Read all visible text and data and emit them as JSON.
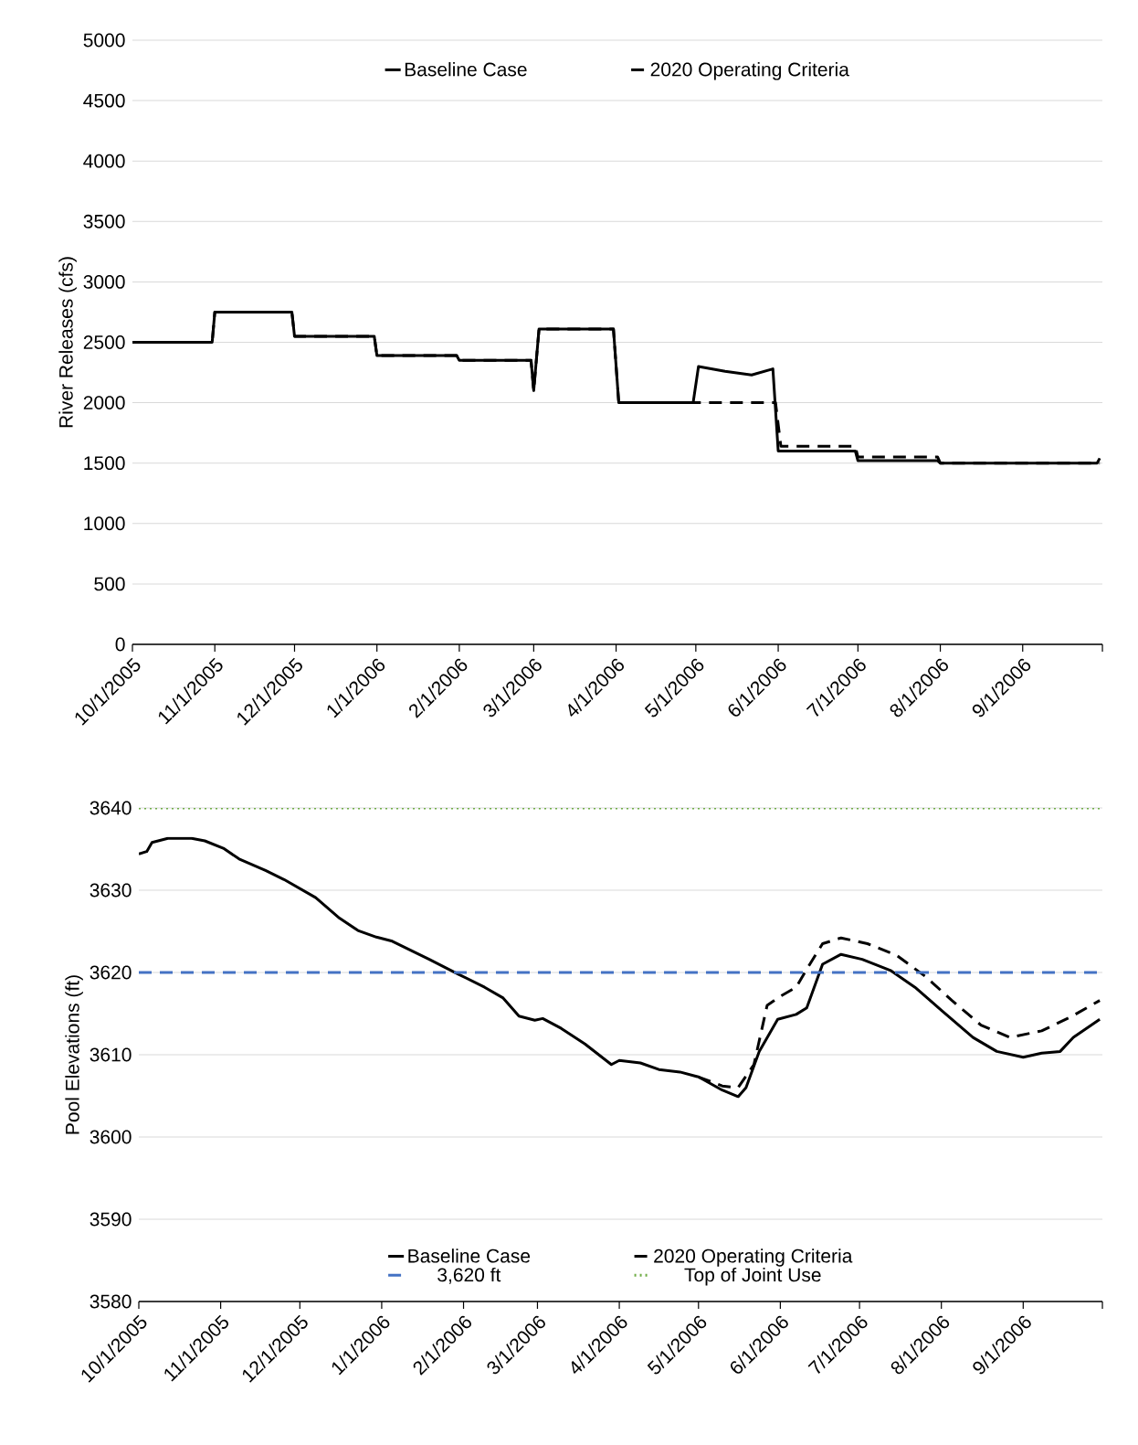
{
  "chart_data": [
    {
      "type": "line",
      "ylabel": "River Releases (cfs)",
      "xlim": [
        "2005-10-01",
        "2006-10-01"
      ],
      "ylim": [
        0,
        5000
      ],
      "yticks": [
        0,
        500,
        1000,
        1500,
        2000,
        2500,
        3000,
        3500,
        4000,
        4500,
        5000
      ],
      "xticks": [
        {
          "value": "2005-10-01",
          "label": "10/1/2005"
        },
        {
          "value": "2005-11-01",
          "label": "11/1/2005"
        },
        {
          "value": "2005-12-01",
          "label": "12/1/2005"
        },
        {
          "value": "2006-01-01",
          "label": "1/1/2006"
        },
        {
          "value": "2006-02-01",
          "label": "2/1/2006"
        },
        {
          "value": "2006-03-01",
          "label": "3/1/2006"
        },
        {
          "value": "2006-04-01",
          "label": "4/1/2006"
        },
        {
          "value": "2006-05-01",
          "label": "5/1/2006"
        },
        {
          "value": "2006-06-01",
          "label": "6/1/2006"
        },
        {
          "value": "2006-07-01",
          "label": "7/1/2006"
        },
        {
          "value": "2006-08-01",
          "label": "8/1/2006"
        },
        {
          "value": "2006-09-01",
          "label": "9/1/2006"
        },
        {
          "value": "2006-10-01",
          "label": null
        }
      ],
      "grid": "y",
      "legend": "top",
      "marker": "none",
      "series": [
        {
          "name": "Baseline Case",
          "color": "#000000",
          "line_style": "solid",
          "x": [
            "2005-10-01",
            "2005-10-31",
            "2005-11-01",
            "2005-11-30",
            "2005-12-01",
            "2005-12-31",
            "2006-01-01",
            "2006-01-31",
            "2006-02-01",
            "2006-02-28",
            "2006-03-01",
            "2006-03-03",
            "2006-03-31",
            "2006-04-02",
            "2006-04-30",
            "2006-05-02",
            "2006-05-12",
            "2006-05-22",
            "2006-05-30",
            "2006-06-01",
            "2006-06-30",
            "2006-07-01",
            "2006-07-31",
            "2006-08-01",
            "2006-09-29",
            "2006-09-30"
          ],
          "values": [
            2500,
            2500,
            2750,
            2750,
            2550,
            2550,
            2390,
            2390,
            2350,
            2350,
            2100,
            2610,
            2610,
            2000,
            2000,
            2300,
            2260,
            2230,
            2280,
            1600,
            1600,
            1520,
            1520,
            1500,
            1500,
            1540
          ]
        },
        {
          "name": "2020 Operating Criteria",
          "color": "#000000",
          "line_style": "dashed",
          "x": [
            "2005-10-01",
            "2005-10-31",
            "2005-11-01",
            "2005-11-30",
            "2005-12-01",
            "2005-12-31",
            "2006-01-01",
            "2006-01-31",
            "2006-02-01",
            "2006-02-28",
            "2006-03-01",
            "2006-03-03",
            "2006-03-31",
            "2006-04-02",
            "2006-05-31",
            "2006-06-02",
            "2006-06-30",
            "2006-07-01",
            "2006-07-31",
            "2006-08-01",
            "2006-09-30"
          ],
          "values": [
            2500,
            2500,
            2750,
            2750,
            2550,
            2550,
            2390,
            2390,
            2350,
            2350,
            2100,
            2610,
            2610,
            2000,
            2000,
            1640,
            1640,
            1550,
            1550,
            1500,
            1500
          ]
        }
      ]
    },
    {
      "type": "line",
      "ylabel": "Pool Elevations (ft)",
      "xlim": [
        "2005-10-01",
        "2006-10-01"
      ],
      "ylim": [
        3580,
        3640
      ],
      "yticks": [
        3580,
        3590,
        3600,
        3610,
        3620,
        3630,
        3640
      ],
      "xticks": [
        {
          "value": "2005-10-01",
          "label": "10/1/2005"
        },
        {
          "value": "2005-11-01",
          "label": "11/1/2005"
        },
        {
          "value": "2005-12-01",
          "label": "12/1/2005"
        },
        {
          "value": "2006-01-01",
          "label": "1/1/2006"
        },
        {
          "value": "2006-02-01",
          "label": "2/1/2006"
        },
        {
          "value": "2006-03-01",
          "label": "3/1/2006"
        },
        {
          "value": "2006-04-01",
          "label": "4/1/2006"
        },
        {
          "value": "2006-05-01",
          "label": "5/1/2006"
        },
        {
          "value": "2006-06-01",
          "label": "6/1/2006"
        },
        {
          "value": "2006-07-01",
          "label": "7/1/2006"
        },
        {
          "value": "2006-08-01",
          "label": "8/1/2006"
        },
        {
          "value": "2006-09-01",
          "label": "9/1/2006"
        },
        {
          "value": "2006-10-01",
          "label": null
        }
      ],
      "grid": "y",
      "legend": "bottom",
      "marker": "none",
      "series": [
        {
          "name": "Baseline Case",
          "color": "#000000",
          "line_style": "solid",
          "x": [
            "2005-10-01",
            "2005-10-04",
            "2005-10-06",
            "2005-10-12",
            "2005-10-21",
            "2005-10-26",
            "2005-11-02",
            "2005-11-08",
            "2005-11-18",
            "2005-11-25",
            "2005-12-07",
            "2005-12-16",
            "2005-12-23",
            "2005-12-30",
            "2006-01-05",
            "2006-01-19",
            "2006-01-30",
            "2006-02-09",
            "2006-02-16",
            "2006-02-22",
            "2006-02-28",
            "2006-03-03",
            "2006-03-10",
            "2006-03-19",
            "2006-03-29",
            "2006-04-01",
            "2006-04-09",
            "2006-04-16",
            "2006-04-24",
            "2006-05-01",
            "2006-05-10",
            "2006-05-16",
            "2006-05-19",
            "2006-05-24",
            "2006-05-31",
            "2006-06-07",
            "2006-06-11",
            "2006-06-17",
            "2006-06-24",
            "2006-07-02",
            "2006-07-13",
            "2006-07-22",
            "2006-08-01",
            "2006-08-13",
            "2006-08-22",
            "2006-09-01",
            "2006-09-08",
            "2006-09-15",
            "2006-09-20",
            "2006-09-30"
          ],
          "values": [
            3634.4,
            3634.7,
            3635.8,
            3636.3,
            3636.3,
            3636,
            3635.1,
            3633.8,
            3632.4,
            3631.3,
            3629.1,
            3626.6,
            3625.1,
            3624.3,
            3623.8,
            3621.6,
            3619.8,
            3618.2,
            3616.9,
            3614.7,
            3614.2,
            3614.4,
            3613.2,
            3611.3,
            3608.8,
            3609.3,
            3609,
            3608.2,
            3607.9,
            3607.3,
            3605.7,
            3604.9,
            3606,
            3610.4,
            3614.3,
            3614.9,
            3615.7,
            3621,
            3622.2,
            3621.6,
            3620.2,
            3618.2,
            3615.4,
            3612.1,
            3610.4,
            3609.7,
            3610.2,
            3610.4,
            3612.1,
            3614.3
          ]
        },
        {
          "name": "2020 Operating Criteria",
          "color": "#000000",
          "line_style": "dashed",
          "x": [
            "2006-05-01",
            "2006-05-10",
            "2006-05-16",
            "2006-05-22",
            "2006-05-27",
            "2006-06-01",
            "2006-06-07",
            "2006-06-11",
            "2006-06-17",
            "2006-06-24",
            "2006-07-04",
            "2006-07-15",
            "2006-07-26",
            "2006-08-05",
            "2006-08-16",
            "2006-08-27",
            "2006-09-08",
            "2006-09-19",
            "2006-09-30"
          ],
          "values": [
            3607.3,
            3606.2,
            3606,
            3608.8,
            3616,
            3617.1,
            3618.2,
            3620.4,
            3623.5,
            3624.2,
            3623.5,
            3622.1,
            3619.5,
            3616.6,
            3613.6,
            3612.1,
            3612.9,
            3614.6,
            3616.6
          ]
        }
      ],
      "ref_lines": [
        {
          "axis": "y",
          "value": 3620,
          "label": "3,620 ft",
          "color": "#4472c4",
          "line_style": "dashed"
        },
        {
          "axis": "y",
          "value": 3640,
          "label": "Top of Joint Use",
          "color": "#70ad47",
          "line_style": "dotted"
        }
      ]
    }
  ]
}
